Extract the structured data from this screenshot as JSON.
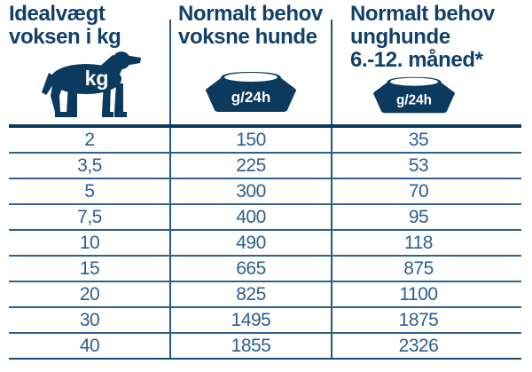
{
  "table": {
    "columns": [
      {
        "title_lines": [
          "Idealvægt",
          "voksen i kg",
          ""
        ],
        "icon": "dog-weight-icon",
        "icon_label": "kg"
      },
      {
        "title_lines": [
          "Normalt behov",
          "voksne hunde",
          ""
        ],
        "icon": "food-bowl-icon",
        "icon_label": "g/24h"
      },
      {
        "title_lines": [
          "Normalt behov",
          "unghunde",
          "6.-12. måned*"
        ],
        "icon": "food-bowl-icon",
        "icon_label": "g/24h"
      }
    ],
    "rows": [
      [
        "2",
        "150",
        "35"
      ],
      [
        "3,5",
        "225",
        "53"
      ],
      [
        "5",
        "300",
        "70"
      ],
      [
        "7,5",
        "400",
        "95"
      ],
      [
        "10",
        "490",
        "118"
      ],
      [
        "15",
        "665",
        "875"
      ],
      [
        "20",
        "825",
        "1100"
      ],
      [
        "30",
        "1495",
        "1875"
      ],
      [
        "40",
        "1855",
        "2326"
      ]
    ]
  },
  "colors": {
    "brand_navy": "#0c3a5f",
    "line_blue": "#31628d",
    "text_blue": "#2e5f8c"
  }
}
